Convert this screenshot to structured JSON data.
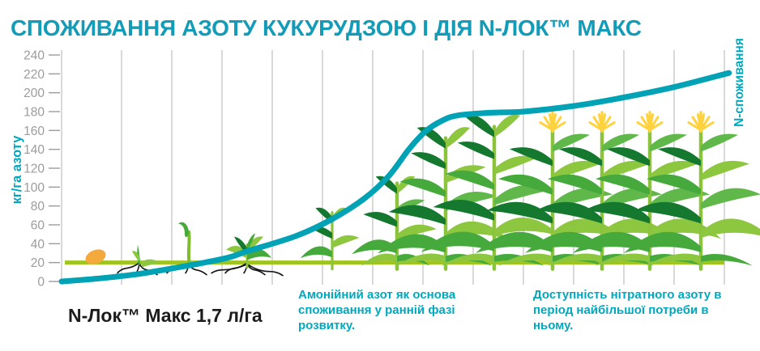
{
  "title": "СПОЖИВАННЯ АЗОТУ КУКУРУДЗОЮ І ДІЯ N-ЛОК™ МАКС",
  "colors": {
    "title_teal": "#129CB8",
    "curve_teal": "#00A3B5",
    "note_teal": "#00A8BE",
    "baseline_green": "#A0C51E",
    "stalk_green": "#8CC33C",
    "leaf_light": "#8DC63F",
    "leaf_mid": "#45A93C",
    "leaf_dark": "#15782F",
    "leaf_extra": "#5FB849",
    "tassel_yellow": "#FFD23E",
    "seed_orange": "#F3A93C",
    "grid_gray": "#B3B3B3",
    "tick_gray": "#9C9C9C",
    "root_black": "#131313",
    "label_black": "#1C1C1C"
  },
  "chart_data": {
    "type": "line",
    "title": "СПОЖИВАННЯ АЗОТУ КУКУРУДЗОЮ І ДІЯ N-ЛОК™ МАКС",
    "ylabel": "кг/га азоту",
    "right_axis_label": "N-споживання",
    "xlabel": "",
    "ylim": [
      0,
      240
    ],
    "yticks": [
      0,
      20,
      40,
      60,
      80,
      100,
      120,
      140,
      160,
      180,
      200,
      220,
      240
    ],
    "grid": "vertical gridlines only, no x tick labels",
    "legend_position": "none",
    "series": [
      {
        "name": "N-споживання",
        "color": "#00A3B5",
        "x_unit": "season progress fraction (unlabeled axis)",
        "points": [
          [
            0.0,
            0
          ],
          [
            0.054,
            3
          ],
          [
            0.117,
            8
          ],
          [
            0.192,
            17
          ],
          [
            0.25,
            25
          ],
          [
            0.28,
            32
          ],
          [
            0.353,
            48
          ],
          [
            0.408,
            66
          ],
          [
            0.457,
            88
          ],
          [
            0.494,
            112
          ],
          [
            0.524,
            140
          ],
          [
            0.549,
            159
          ],
          [
            0.573,
            170
          ],
          [
            0.598,
            176
          ],
          [
            0.653,
            179
          ],
          [
            0.697,
            180
          ],
          [
            0.773,
            186
          ],
          [
            0.848,
            195
          ],
          [
            0.924,
            206
          ],
          [
            1.007,
            221
          ]
        ]
      }
    ],
    "baseline": {
      "name": "N-Лок™ Макс 1,7 л/га",
      "value": 20,
      "color": "#A0C51E"
    },
    "growth_stages": [
      {
        "type": "seed",
        "x_frac": 0.051,
        "height": 0
      },
      {
        "type": "sprout",
        "x_frac": 0.117,
        "height": 24
      },
      {
        "type": "shoot",
        "x_frac": 0.192,
        "height": 46
      },
      {
        "type": "seedling",
        "x_frac": 0.28,
        "height": 52
      },
      {
        "type": "young-plant",
        "x_frac": 0.408,
        "height": 66
      },
      {
        "type": "plant",
        "x_frac": 0.506,
        "height": 102
      },
      {
        "type": "plant",
        "x_frac": 0.579,
        "height": 158
      },
      {
        "type": "plant",
        "x_frac": 0.653,
        "height": 172
      },
      {
        "type": "tassel-plant",
        "x_frac": 0.741,
        "height": 180
      },
      {
        "type": "tassel-plant",
        "x_frac": 0.815,
        "height": 180
      },
      {
        "type": "tassel-plant",
        "x_frac": 0.888,
        "height": 180
      },
      {
        "type": "tassel-plant",
        "x_frac": 0.965,
        "height": 180
      }
    ]
  },
  "footer": {
    "product_label": "N-Лок™ Макс 1,7 л/га",
    "note_left": "Амонійний азот як основа споживання у ранній фазі розвитку.",
    "note_right": "Доступність нітратного азоту в період найбільшої потреби в ньому."
  }
}
